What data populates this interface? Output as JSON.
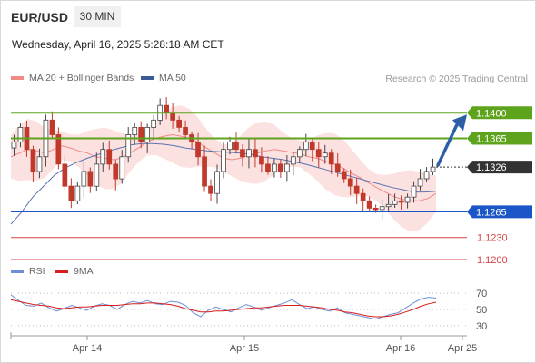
{
  "header": {
    "symbol": "EUR/USD",
    "timeframe": "30 MIN",
    "datetime": "Wednesday, April 16, 2025 5:28:18 AM CET"
  },
  "legend_main": [
    {
      "label": "MA 20 + Bollinger Bands",
      "color": "#f08a85"
    },
    {
      "label": "MA 50",
      "color": "#3c5a96"
    }
  ],
  "legend_rsi": [
    {
      "label": "RSI",
      "color": "#6e8fd6"
    },
    {
      "label": "9MA",
      "color": "#d61e1e"
    }
  ],
  "credit": "Research © 2025 Trading Central",
  "chart_data": {
    "type": "candlestick",
    "ylim": [
      1.1195,
      1.143
    ],
    "x_ticks": [
      "Apr 14",
      "Apr 15",
      "Apr 16",
      "Apr 25"
    ],
    "current_price": "1.1326",
    "levels": [
      {
        "label": "1.1400",
        "value": 1.14,
        "kind": "resistance",
        "color": "#5da31c"
      },
      {
        "label": "1.1365",
        "value": 1.1365,
        "kind": "resistance",
        "color": "#5da31c"
      },
      {
        "label": "1.1265",
        "value": 1.1265,
        "kind": "pivot",
        "color": "#1a56c8"
      },
      {
        "label": "1.1230",
        "value": 1.123,
        "kind": "support",
        "color": "#d64545"
      },
      {
        "label": "1.1200",
        "value": 1.12,
        "kind": "support",
        "color": "#d64545"
      }
    ],
    "close_path": [
      1.136,
      1.138,
      1.135,
      1.132,
      1.134,
      1.139,
      1.137,
      1.133,
      1.13,
      1.128,
      1.13,
      1.132,
      1.13,
      1.133,
      1.135,
      1.133,
      1.131,
      1.134,
      1.137,
      1.138,
      1.136,
      1.138,
      1.139,
      1.141,
      1.14,
      1.139,
      1.138,
      1.137,
      1.136,
      1.134,
      1.13,
      1.129,
      1.132,
      1.135,
      1.136,
      1.135,
      1.134,
      1.135,
      1.134,
      1.133,
      1.132,
      1.133,
      1.132,
      1.133,
      1.134,
      1.135,
      1.136,
      1.135,
      1.134,
      1.1345,
      1.133,
      1.132,
      1.131,
      1.13,
      1.129,
      1.128,
      1.127,
      1.1268,
      1.1272,
      1.1275,
      1.128,
      1.1278,
      1.1285,
      1.13,
      1.131,
      1.132,
      1.1326
    ],
    "ma20": [
      1.134,
      1.1345,
      1.135,
      1.1348,
      1.1345,
      1.135,
      1.1355,
      1.1352,
      1.1348,
      1.1345,
      1.134,
      1.1338,
      1.1336,
      1.1338,
      1.1345,
      1.1352,
      1.136,
      1.1365,
      1.1368,
      1.137,
      1.1368,
      1.1365,
      1.136,
      1.1352,
      1.1345,
      1.1338,
      1.1336,
      1.1338,
      1.1342,
      1.1345,
      1.1348,
      1.135,
      1.1348,
      1.1346,
      1.1344,
      1.134,
      1.1338,
      1.1334,
      1.133,
      1.1325,
      1.1318,
      1.1312,
      1.1305,
      1.1298,
      1.1292,
      1.1286,
      1.1282,
      1.128,
      1.128,
      1.1283,
      1.129
    ],
    "ma50": [
      1.1248,
      1.1265,
      1.1285,
      1.13,
      1.1315,
      1.1325,
      1.1332,
      1.1338,
      1.1343,
      1.1348,
      1.1352,
      1.1356,
      1.1358,
      1.1358,
      1.1357,
      1.1355,
      1.1352,
      1.135,
      1.1348,
      1.1347,
      1.1346,
      1.1345,
      1.1343,
      1.134,
      1.1338,
      1.1336,
      1.1333,
      1.133,
      1.1326,
      1.1322,
      1.1318,
      1.1314,
      1.131,
      1.1306,
      1.1302,
      1.1298,
      1.1295,
      1.1292,
      1.1292,
      1.1293
    ],
    "arrow_target": 1.14,
    "rsi": {
      "ticks": [
        70,
        50,
        30
      ],
      "ylim": [
        22,
        78
      ],
      "rsi": [
        68,
        61,
        55,
        54,
        58,
        52,
        48,
        51,
        55,
        52,
        49,
        54,
        57,
        55,
        50,
        56,
        60,
        58,
        61,
        57,
        56,
        60,
        59,
        55,
        46,
        41,
        49,
        53,
        50,
        47,
        52,
        56,
        53,
        49,
        52,
        55,
        58,
        62,
        56,
        51,
        53,
        50,
        48,
        52,
        46,
        44,
        42,
        40,
        38,
        41,
        44,
        46,
        52,
        58,
        63,
        65,
        64
      ],
      "ma9": [
        62,
        60,
        58,
        56,
        55,
        54,
        52,
        51,
        52,
        53,
        53,
        54,
        55,
        55,
        55,
        56,
        57,
        57,
        58,
        58,
        57,
        56,
        54,
        51,
        49,
        47,
        47,
        48,
        48,
        49,
        50,
        51,
        52,
        52,
        53,
        54,
        55,
        55,
        55,
        54,
        53,
        52,
        50,
        49,
        47,
        46,
        44,
        42,
        41,
        41,
        42,
        44,
        47,
        50,
        54,
        57,
        59
      ]
    }
  }
}
